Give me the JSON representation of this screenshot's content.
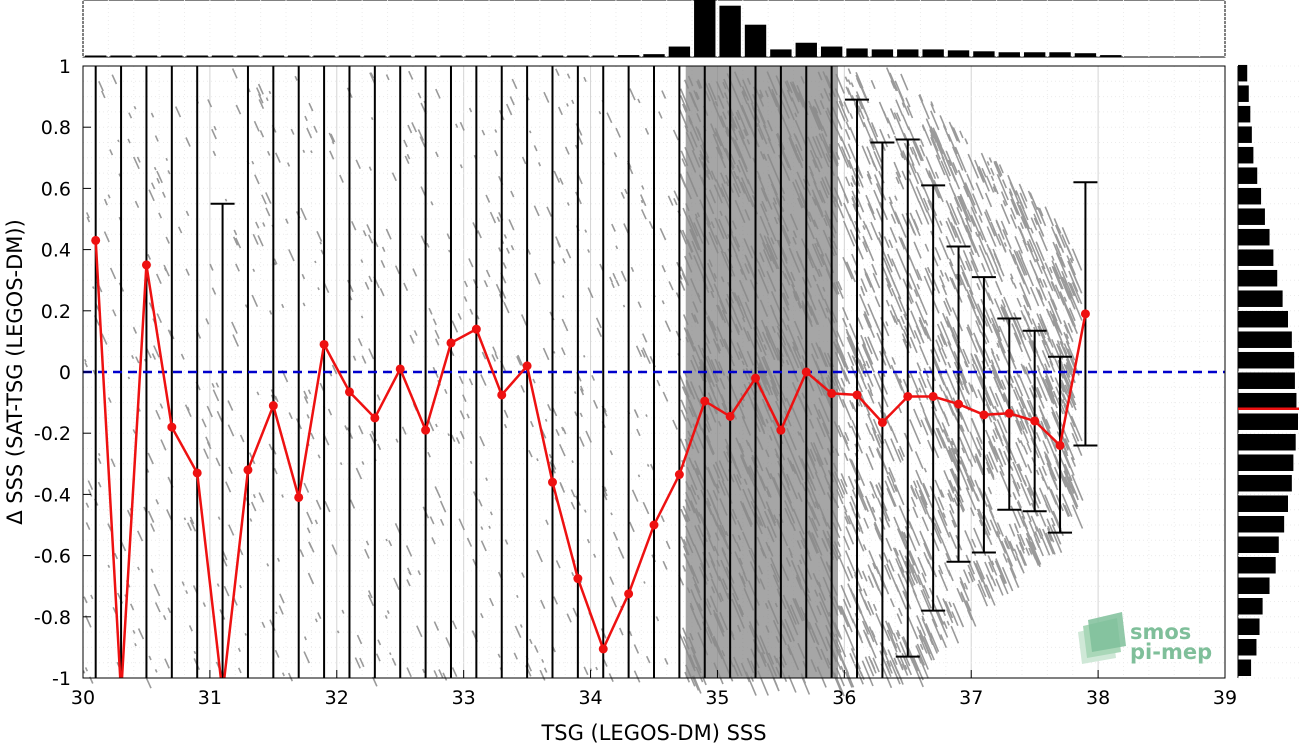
{
  "chart_data": {
    "type": "scatter",
    "xlabel": "TSG (LEGOS-DM) SSS",
    "ylabel": "Δ SSS (SAT-TSG (LEGOS-DM))",
    "xlim": [
      30,
      39
    ],
    "ylim": [
      -1,
      1
    ],
    "xticks": [
      30,
      31,
      32,
      33,
      34,
      35,
      36,
      37,
      38,
      39
    ],
    "yticks": [
      1,
      0.8,
      0.6,
      0.4,
      0.2,
      0,
      -0.2,
      -0.4,
      -0.6,
      -0.8,
      -1
    ],
    "ytick_labels": [
      "1",
      "0.8",
      "0.6",
      "0.4",
      "0.2",
      "0",
      "-0.2",
      "-0.4",
      "-0.6",
      "-0.8",
      "-1"
    ],
    "grid": true,
    "zero_line": {
      "y": 0,
      "color": "#0000cc",
      "style": "dashed"
    },
    "mean_series": {
      "color": "#ee1111",
      "x": [
        30.1,
        30.3,
        30.5,
        30.7,
        30.9,
        31.1,
        31.3,
        31.5,
        31.7,
        31.9,
        32.1,
        32.3,
        32.5,
        32.7,
        32.9,
        33.1,
        33.3,
        33.5,
        33.7,
        33.9,
        34.1,
        34.3,
        34.5,
        34.7,
        34.9,
        35.1,
        35.3,
        35.5,
        35.7,
        35.9,
        36.1,
        36.3,
        36.5,
        36.7,
        36.9,
        37.1,
        37.3,
        37.5,
        37.7,
        37.9
      ],
      "y": [
        0.43,
        -1.05,
        0.35,
        -0.18,
        -0.33,
        -1.05,
        -0.32,
        -0.11,
        -0.41,
        0.09,
        -0.065,
        -0.15,
        0.01,
        -0.19,
        0.095,
        0.14,
        -0.075,
        0.02,
        -0.36,
        -0.675,
        -0.905,
        -0.725,
        -0.5,
        -0.335,
        -0.095,
        -0.145,
        -0.02,
        -0.19,
        0.0,
        -0.07,
        -0.075,
        -0.165,
        -0.08,
        -0.08,
        -0.105,
        -0.14,
        -0.135,
        -0.16,
        -0.24,
        0.19
      ]
    },
    "error_bars": [
      {
        "x": 30.1,
        "lo": -1.6,
        "hi": 2.0
      },
      {
        "x": 30.3,
        "lo": -3.0,
        "hi": 2.0
      },
      {
        "x": 30.5,
        "lo": -1.6,
        "hi": 2.0
      },
      {
        "x": 30.7,
        "lo": -1.5,
        "hi": 1.5
      },
      {
        "x": 30.9,
        "lo": -1.6,
        "hi": 1.3
      },
      {
        "x": 31.1,
        "lo": -2.6,
        "hi": 0.55
      },
      {
        "x": 31.3,
        "lo": -1.5,
        "hi": 1.2
      },
      {
        "x": 31.5,
        "lo": -1.2,
        "hi": 1.3
      },
      {
        "x": 31.7,
        "lo": -1.5,
        "hi": 1.2
      },
      {
        "x": 31.9,
        "lo": -1.2,
        "hi": 1.3
      },
      {
        "x": 32.1,
        "lo": -1.2,
        "hi": 1.2
      },
      {
        "x": 32.3,
        "lo": -1.2,
        "hi": 1.2
      },
      {
        "x": 32.5,
        "lo": -1.2,
        "hi": 1.2
      },
      {
        "x": 32.7,
        "lo": -1.2,
        "hi": 1.2
      },
      {
        "x": 32.9,
        "lo": -1.2,
        "hi": 1.2
      },
      {
        "x": 33.1,
        "lo": -1.2,
        "hi": 1.2
      },
      {
        "x": 33.3,
        "lo": -1.2,
        "hi": 1.2
      },
      {
        "x": 33.5,
        "lo": -1.2,
        "hi": 1.2
      },
      {
        "x": 33.7,
        "lo": -1.2,
        "hi": 1.2
      },
      {
        "x": 33.9,
        "lo": -1.5,
        "hi": 1.2
      },
      {
        "x": 34.1,
        "lo": -1.8,
        "hi": 1.2
      },
      {
        "x": 34.3,
        "lo": -1.6,
        "hi": 1.2
      },
      {
        "x": 34.5,
        "lo": -1.5,
        "hi": 1.2
      },
      {
        "x": 34.7,
        "lo": -1.4,
        "hi": 1.2
      },
      {
        "x": 34.9,
        "lo": -1.2,
        "hi": 1.2
      },
      {
        "x": 35.1,
        "lo": -1.2,
        "hi": 1.2
      },
      {
        "x": 35.3,
        "lo": -1.2,
        "hi": 1.2
      },
      {
        "x": 35.5,
        "lo": -1.2,
        "hi": 1.2
      },
      {
        "x": 35.7,
        "lo": -1.2,
        "hi": 1.2
      },
      {
        "x": 35.9,
        "lo": -1.2,
        "hi": 1.2
      },
      {
        "x": 36.1,
        "lo": -1.2,
        "hi": 0.89
      },
      {
        "x": 36.3,
        "lo": -1.2,
        "hi": 0.75
      },
      {
        "x": 36.5,
        "lo": -0.93,
        "hi": 0.76
      },
      {
        "x": 36.7,
        "lo": -0.78,
        "hi": 0.61
      },
      {
        "x": 36.9,
        "lo": -0.62,
        "hi": 0.41
      },
      {
        "x": 37.1,
        "lo": -0.59,
        "hi": 0.31
      },
      {
        "x": 37.3,
        "lo": -0.45,
        "hi": 0.175
      },
      {
        "x": 37.5,
        "lo": -0.455,
        "hi": 0.135
      },
      {
        "x": 37.7,
        "lo": -0.525,
        "hi": 0.05
      },
      {
        "x": 37.9,
        "lo": -0.24,
        "hi": 0.62
      }
    ],
    "scatter": {
      "color": "#888888",
      "dense_range": [
        34.7,
        37.8
      ]
    },
    "top_histogram": {
      "bin_start": 30.0,
      "bin_width": 0.2,
      "values": [
        1,
        1,
        1,
        1,
        1,
        1,
        1,
        1,
        1,
        1,
        1,
        1,
        1,
        1,
        1,
        1,
        1,
        1,
        1,
        1,
        1,
        2,
        3,
        11,
        60,
        54,
        34,
        8,
        15,
        11,
        9,
        8,
        8,
        8,
        7,
        6,
        5,
        5,
        5,
        4,
        2,
        0,
        0,
        0,
        0
      ]
    },
    "right_histogram": {
      "y_start": -1.0,
      "bin_height": 0.067,
      "values": [
        17,
        24,
        28,
        32,
        41,
        49,
        53,
        60,
        65,
        70,
        72,
        75,
        78,
        76,
        74,
        73,
        70,
        65,
        58,
        51,
        46,
        41,
        35,
        30,
        25,
        20,
        18,
        16,
        14,
        12
      ],
      "mean_marker": -0.12,
      "mean_color": "#ee1111"
    }
  },
  "logo": {
    "line1": "smos",
    "line2": "pi-mep"
  }
}
